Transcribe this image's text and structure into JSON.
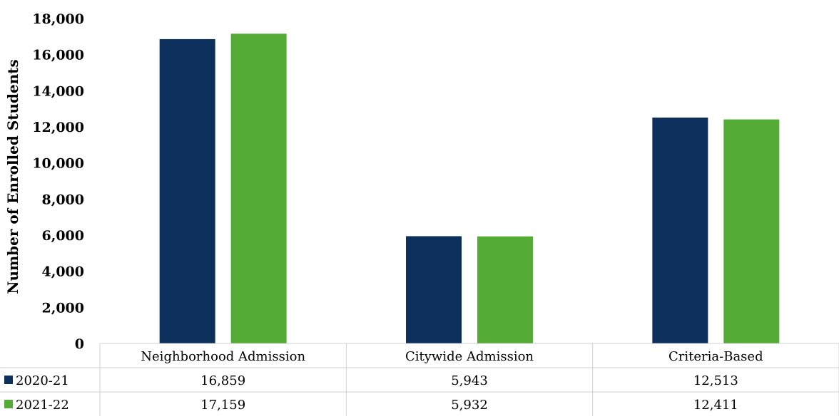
{
  "chart_data": {
    "type": "bar",
    "ylabel": "Number of Enrolled Students",
    "ylim": [
      0,
      18000
    ],
    "yticks": [
      "0",
      "2,000",
      "4,000",
      "6,000",
      "8,000",
      "10,000",
      "12,000",
      "14,000",
      "16,000",
      "18,000"
    ],
    "ytick_values": [
      0,
      2000,
      4000,
      6000,
      8000,
      10000,
      12000,
      14000,
      16000,
      18000
    ],
    "categories": [
      "Neighborhood Admission",
      "Citywide Admission",
      "Criteria-Based"
    ],
    "series": [
      {
        "name": "2020-21",
        "color": "#0d2f5c",
        "values": [
          16859,
          5943,
          12513
        ],
        "labels": [
          "16,859",
          "5,943",
          "12,513"
        ]
      },
      {
        "name": "2021-22",
        "color": "#54ab36",
        "values": [
          17159,
          5932,
          12411
        ],
        "labels": [
          "17,159",
          "5,932",
          "12,411"
        ]
      }
    ],
    "legend": "data-table",
    "grid": false
  }
}
